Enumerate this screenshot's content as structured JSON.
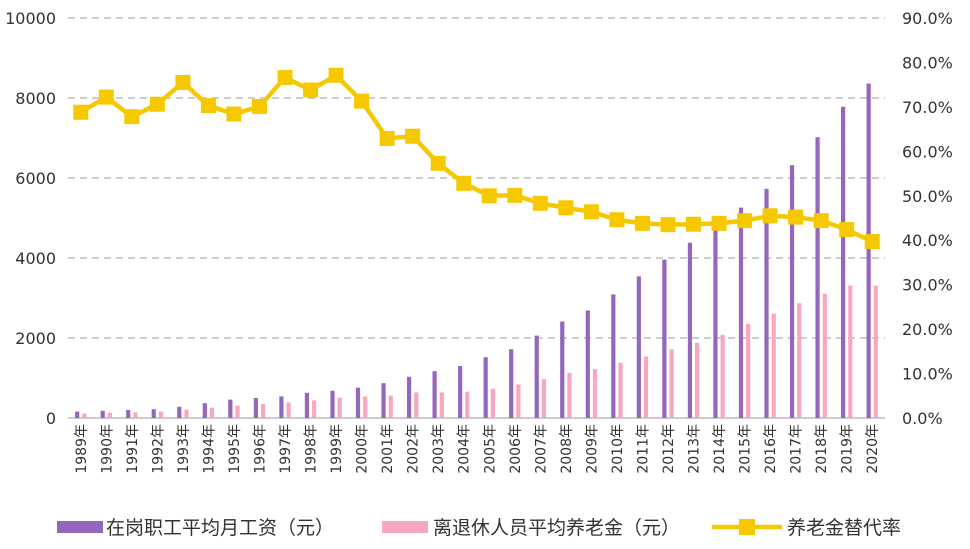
{
  "chart_data": {
    "type": "bar",
    "title": "",
    "categories": [
      "1989年",
      "1990年",
      "1991年",
      "1992年",
      "1993年",
      "1994年",
      "1995年",
      "1996年",
      "1997年",
      "1998年",
      "1999年",
      "2000年",
      "2001年",
      "2002年",
      "2003年",
      "2004年",
      "2005年",
      "2006年",
      "2007年",
      "2008年",
      "2009年",
      "2010年",
      "2011年",
      "2012年",
      "2013年",
      "2014年",
      "2015年",
      "2016年",
      "2017年",
      "2018年",
      "2019年",
      "2020年"
    ],
    "series": [
      {
        "name": "在岗职工平均月工资（元）",
        "chart": "bar",
        "axis": "left",
        "color": "#9467bd",
        "values": [
          160,
          180,
          200,
          220,
          280,
          370,
          460,
          500,
          540,
          630,
          680,
          760,
          870,
          1030,
          1170,
          1300,
          1520,
          1720,
          2060,
          2410,
          2690,
          3090,
          3540,
          3960,
          4380,
          4780,
          5260,
          5730,
          6320,
          7020,
          7780,
          8360
        ]
      },
      {
        "name": "离退休人员平均养老金（元）",
        "chart": "bar",
        "axis": "left",
        "color": "#f7a8c0",
        "values": [
          110,
          130,
          140,
          160,
          210,
          260,
          310,
          350,
          390,
          440,
          510,
          540,
          560,
          640,
          640,
          660,
          730,
          840,
          970,
          1130,
          1220,
          1380,
          1540,
          1720,
          1880,
          2080,
          2350,
          2610,
          2870,
          3110,
          3310,
          3310
        ]
      },
      {
        "name": "养老金替代率",
        "chart": "line",
        "axis": "right",
        "color": "#f5c800",
        "values": [
          68.8,
          72.2,
          67.8,
          70.6,
          75.5,
          70.3,
          68.4,
          70.1,
          76.6,
          73.8,
          77.1,
          71.3,
          62.9,
          63.4,
          57.3,
          52.8,
          50.0,
          50.1,
          48.3,
          47.3,
          46.4,
          44.6,
          43.8,
          43.5,
          43.6,
          43.8,
          44.4,
          45.5,
          45.2,
          44.4,
          42.4,
          39.7
        ]
      }
    ],
    "y_left": {
      "ylim": [
        0,
        10000
      ],
      "ticks": [
        "0",
        "2000",
        "4000",
        "6000",
        "8000",
        "10000"
      ]
    },
    "y_right": {
      "ylim": [
        0,
        90
      ],
      "ticks": [
        "0.0%",
        "10.0%",
        "20.0%",
        "30.0%",
        "40.0%",
        "50.0%",
        "60.0%",
        "70.0%",
        "80.0%",
        "90.0%"
      ]
    },
    "grid": true,
    "legend_position": "bottom",
    "xlabel": "",
    "ylabel": ""
  }
}
